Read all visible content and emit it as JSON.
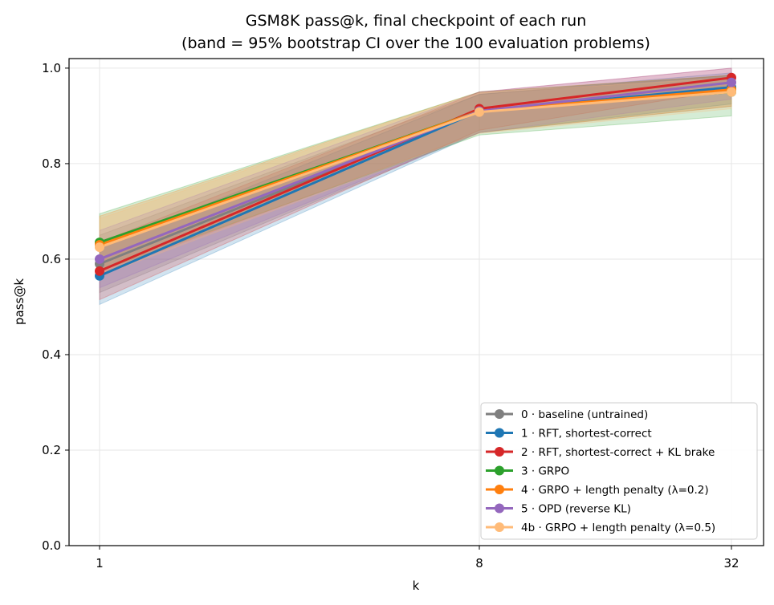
{
  "chart_data": {
    "type": "line",
    "title": "GSM8K pass@k, final checkpoint of each run",
    "subtitle": "(band = 95% bootstrap CI over the 100 evaluation problems)",
    "xlabel": "k",
    "ylabel": "pass@k",
    "x": [
      1,
      8,
      32
    ],
    "x_tick_labels": [
      "1",
      "8",
      "32"
    ],
    "ylim": [
      0.0,
      1.02
    ],
    "y_ticks": [
      0.0,
      0.2,
      0.4,
      0.6,
      0.8,
      1.0
    ],
    "y_tick_labels": [
      "0.0",
      "0.2",
      "0.4",
      "0.6",
      "0.8",
      "1.0"
    ],
    "grid": true,
    "legend_position": "lower-right",
    "series": [
      {
        "name": "0 · baseline (untrained)",
        "color": "#7f7f7f",
        "values": [
          0.59,
          0.91,
          0.955
        ],
        "ci_low": [
          0.53,
          0.865,
          0.92
        ],
        "ci_high": [
          0.65,
          0.945,
          0.985
        ]
      },
      {
        "name": "1 · RFT, shortest-correct",
        "color": "#1f77b4",
        "values": [
          0.565,
          0.91,
          0.96
        ],
        "ci_low": [
          0.505,
          0.865,
          0.925
        ],
        "ci_high": [
          0.625,
          0.945,
          0.99
        ]
      },
      {
        "name": "2 · RFT, shortest-correct + KL brake",
        "color": "#d62728",
        "values": [
          0.575,
          0.915,
          0.98
        ],
        "ci_low": [
          0.515,
          0.87,
          0.955
        ],
        "ci_high": [
          0.635,
          0.95,
          1.0
        ]
      },
      {
        "name": "3 · GRPO",
        "color": "#2ca02c",
        "values": [
          0.635,
          0.91,
          0.95
        ],
        "ci_low": [
          0.575,
          0.86,
          0.9
        ],
        "ci_high": [
          0.695,
          0.95,
          0.985
        ]
      },
      {
        "name": "4 · GRPO + length penalty (λ=0.2)",
        "color": "#ff7f0e",
        "values": [
          0.63,
          0.91,
          0.955
        ],
        "ci_low": [
          0.57,
          0.865,
          0.92
        ],
        "ci_high": [
          0.69,
          0.95,
          0.985
        ]
      },
      {
        "name": "5 · OPD (reverse KL)",
        "color": "#9467bd",
        "values": [
          0.6,
          0.91,
          0.97
        ],
        "ci_low": [
          0.54,
          0.865,
          0.935
        ],
        "ci_high": [
          0.66,
          0.95,
          1.0
        ]
      },
      {
        "name": "4b · GRPO + length penalty (λ=0.5)",
        "color": "#ffbb78",
        "values": [
          0.625,
          0.908,
          0.95
        ],
        "ci_low": [
          0.565,
          0.863,
          0.915
        ],
        "ci_high": [
          0.685,
          0.948,
          0.98
        ]
      }
    ]
  }
}
